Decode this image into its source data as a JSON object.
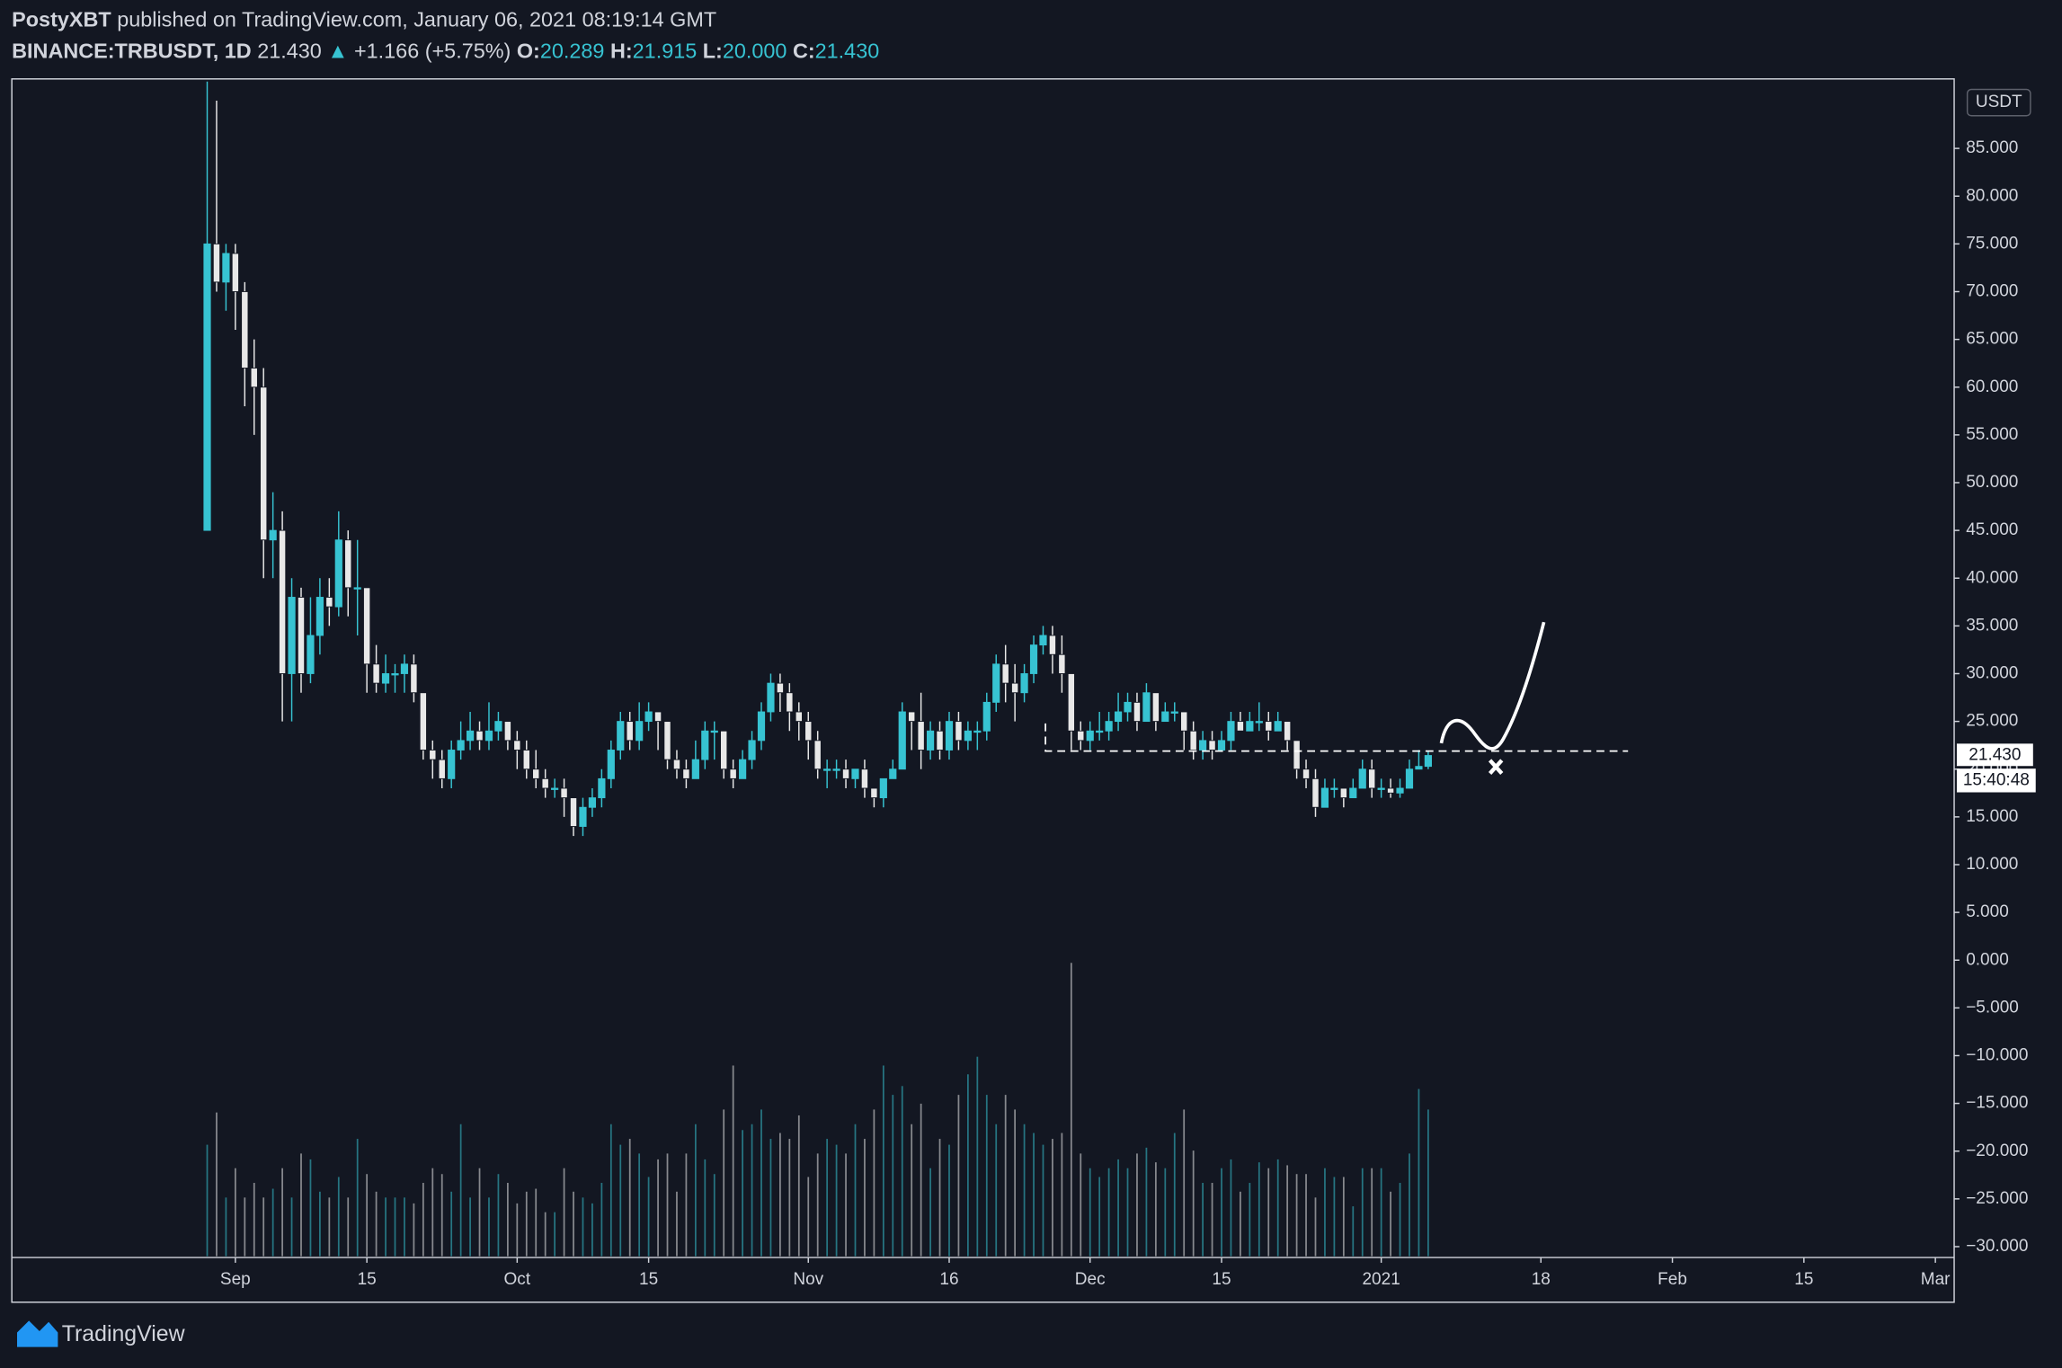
{
  "header": {
    "publisher": "PostyXBT",
    "published": "published on TradingView.com, January 06, 2021 08:19:14 GMT",
    "symbol": "BINANCE:TRBUSDT, 1D",
    "last": "21.430",
    "arrow": "▲",
    "change": "+1.166 (+5.75%)",
    "o_label": "O:",
    "o": "20.289",
    "h_label": "H:",
    "h": "21.915",
    "l_label": "L:",
    "l": "20.000",
    "c_label": "C:",
    "c": "21.430"
  },
  "chart_data": {
    "type": "candlestick",
    "currency": "USDT",
    "price_label": "21.430",
    "countdown": "15:40:48",
    "up_color": "#37c3d2",
    "down_color": "#e8e8e8",
    "x": [
      -3,
      -2,
      -1,
      0,
      1,
      2,
      3,
      4,
      5,
      6,
      7,
      8,
      9,
      10,
      11,
      12,
      13,
      14,
      15,
      16,
      17,
      18,
      19,
      20,
      21,
      22,
      23,
      24,
      25,
      26,
      27,
      28,
      29,
      30,
      31,
      32,
      33,
      34,
      35,
      36,
      37,
      38,
      39,
      40,
      41,
      42,
      43,
      44,
      45,
      46,
      47,
      48,
      49,
      50,
      51,
      52,
      53,
      54,
      55,
      56,
      57,
      58,
      59,
      60,
      61,
      62,
      63,
      64,
      65,
      66,
      67,
      68,
      69,
      70,
      71,
      72,
      73,
      74,
      75,
      76,
      77,
      78,
      79,
      80,
      81,
      82,
      83,
      84,
      85,
      86,
      87,
      88,
      89,
      90,
      91,
      92,
      93,
      94,
      95,
      96,
      97,
      98,
      99,
      100,
      101,
      102,
      103,
      104,
      105,
      106,
      107,
      108,
      109,
      110,
      111,
      112,
      113,
      114,
      115,
      116,
      117,
      118,
      119,
      120,
      121,
      122,
      123,
      124,
      125,
      126,
      127
    ],
    "open": [
      45,
      75,
      71,
      74,
      70,
      62,
      60,
      44,
      45,
      30,
      38,
      30,
      34,
      38,
      37,
      44,
      39,
      39,
      31,
      29,
      30,
      30,
      31,
      28,
      22,
      21,
      19,
      22,
      23,
      24,
      23,
      24,
      25,
      23,
      22,
      20,
      19,
      18,
      18,
      17,
      14,
      16,
      17,
      19,
      22,
      25,
      23,
      25,
      26,
      25,
      21,
      20,
      19,
      21,
      24,
      24,
      20,
      19,
      21,
      23,
      26,
      29,
      28,
      26,
      25,
      23,
      20,
      20,
      20,
      19,
      20,
      18,
      17,
      19,
      20,
      26,
      25,
      22,
      24,
      22,
      25,
      23,
      24,
      24,
      27,
      31,
      29,
      28,
      30,
      33,
      34,
      32,
      30,
      24,
      23,
      24,
      24,
      25,
      26,
      27,
      25,
      28,
      25,
      26,
      26,
      24,
      22,
      23,
      22,
      23,
      25,
      24,
      25,
      25,
      24,
      25,
      23,
      20,
      19,
      16,
      18,
      18,
      17,
      18,
      20,
      18,
      18,
      17.5,
      18,
      20,
      20.289
    ],
    "high": [
      92,
      90,
      75,
      75,
      71,
      65,
      62,
      49,
      47,
      40,
      39,
      38,
      40,
      40,
      47,
      45,
      44,
      39,
      33,
      32,
      31,
      32,
      32,
      28,
      23,
      22,
      23,
      25,
      26,
      25,
      27,
      26,
      25,
      24,
      23,
      22,
      20,
      19,
      19,
      17,
      17,
      18,
      20,
      23,
      26,
      26,
      27,
      27,
      26,
      25,
      22,
      21,
      23,
      25,
      25,
      24,
      21,
      22,
      24,
      27,
      30,
      30,
      29,
      27,
      26,
      24,
      21,
      21,
      21,
      20,
      21,
      18,
      19,
      21,
      27,
      26,
      28,
      25,
      25,
      26,
      26,
      25,
      25,
      28,
      32,
      33,
      31,
      31,
      34,
      35,
      35,
      34,
      30,
      25,
      25,
      26,
      26,
      28,
      28,
      28,
      29,
      28,
      27,
      27,
      26,
      25,
      24,
      24,
      24,
      26,
      26,
      26,
      27,
      26,
      26,
      25,
      23,
      21,
      20,
      19,
      19,
      18,
      19,
      21,
      21,
      19,
      19,
      19,
      21,
      22,
      21.915
    ],
    "low": [
      45,
      70,
      68,
      66,
      58,
      55,
      40,
      40,
      25,
      25,
      28,
      29,
      32,
      35,
      36,
      36,
      34,
      28,
      28,
      28,
      28,
      28,
      27,
      21,
      19,
      18,
      18,
      21,
      22,
      22,
      22,
      23,
      22,
      20,
      19,
      18,
      17,
      17,
      15,
      13,
      13,
      15,
      16,
      18,
      21,
      22,
      22,
      24,
      22,
      20,
      19,
      18,
      19,
      20,
      21,
      19,
      18,
      19,
      20,
      22,
      25,
      26,
      24,
      23,
      21,
      19,
      18,
      19,
      18,
      18,
      17,
      16,
      16,
      19,
      20,
      22,
      20,
      21,
      21,
      21,
      22,
      22,
      22,
      23,
      26,
      27,
      25,
      27,
      29,
      32,
      30,
      28,
      22,
      22,
      22,
      23,
      23,
      24,
      25,
      24,
      25,
      24,
      25,
      25,
      22,
      21,
      21,
      21,
      22,
      22,
      24,
      24,
      24,
      23,
      24,
      22,
      19,
      18,
      15,
      16,
      17,
      16,
      17,
      18,
      17,
      17,
      17,
      17,
      19,
      20,
      20
    ],
    "close": [
      75,
      71,
      74,
      70,
      62,
      60,
      44,
      45,
      30,
      38,
      30,
      34,
      38,
      37,
      44,
      39,
      39,
      31,
      29,
      30,
      30,
      31,
      28,
      22,
      21,
      19,
      22,
      23,
      24,
      23,
      24,
      25,
      23,
      22,
      20,
      19,
      18,
      18,
      17,
      14,
      16,
      17,
      19,
      22,
      25,
      23,
      25,
      26,
      25,
      21,
      20,
      19,
      21,
      24,
      24,
      20,
      19,
      21,
      23,
      26,
      29,
      28,
      26,
      25,
      23,
      20,
      20,
      20,
      19,
      20,
      18,
      17,
      19,
      20,
      26,
      25,
      22,
      24,
      22,
      25,
      23,
      24,
      24,
      27,
      31,
      29,
      28,
      30,
      33,
      34,
      32,
      30,
      24,
      23,
      24,
      24,
      25,
      26,
      27,
      25,
      28,
      25,
      26,
      26,
      24,
      22,
      23,
      22,
      23,
      25,
      24,
      25,
      25,
      24,
      25,
      23,
      20,
      19,
      16,
      18,
      18,
      17,
      18,
      20,
      18,
      18,
      17.5,
      18,
      20,
      20.289,
      21.43
    ],
    "volume": [
      38,
      49,
      20,
      30,
      20,
      25,
      20,
      23,
      30,
      20,
      35,
      33,
      22,
      20,
      27,
      20,
      40,
      28,
      22,
      20,
      20,
      20,
      18,
      25,
      30,
      28,
      22,
      45,
      20,
      30,
      20,
      28,
      25,
      18,
      22,
      23,
      15,
      15,
      30,
      22,
      20,
      18,
      25,
      45,
      38,
      40,
      35,
      27,
      33,
      35,
      22,
      35,
      45,
      33,
      28,
      50,
      65,
      43,
      45,
      50,
      40,
      42,
      40,
      48,
      27,
      35,
      40,
      38,
      35,
      45,
      40,
      50,
      65,
      55,
      58,
      45,
      52,
      30,
      40,
      38,
      55,
      62,
      68,
      55,
      45,
      55,
      50,
      45,
      42,
      38,
      40,
      42,
      100,
      35,
      30,
      27,
      30,
      33,
      30,
      35,
      37,
      32,
      30,
      42,
      50,
      36,
      25,
      25,
      30,
      33,
      22,
      25,
      32,
      30,
      33,
      31,
      28,
      28,
      20,
      30,
      27,
      27,
      17,
      30,
      30,
      30,
      22,
      25,
      35,
      57,
      50
    ],
    "xlim": [
      -23.8,
      183
    ],
    "xticks": [
      {
        "value": 0,
        "label": "Sep"
      },
      {
        "value": 14,
        "label": "15"
      },
      {
        "value": 30,
        "label": "Oct"
      },
      {
        "value": 44,
        "label": "15"
      },
      {
        "value": 61,
        "label": "Nov"
      },
      {
        "value": 76,
        "label": "16"
      },
      {
        "value": 91,
        "label": "Dec"
      },
      {
        "value": 105,
        "label": "15"
      },
      {
        "value": 122,
        "label": "2021"
      },
      {
        "value": 139,
        "label": "18"
      },
      {
        "value": 153,
        "label": "Feb"
      },
      {
        "value": 167,
        "label": "15"
      },
      {
        "value": 181,
        "label": "Mar"
      }
    ],
    "ylim": [
      -31,
      92
    ],
    "yticks": [
      {
        "value": 85,
        "label": "85.000"
      },
      {
        "value": 80,
        "label": "80.000"
      },
      {
        "value": 75,
        "label": "75.000"
      },
      {
        "value": 70,
        "label": "70.000"
      },
      {
        "value": 65,
        "label": "65.000"
      },
      {
        "value": 60,
        "label": "60.000"
      },
      {
        "value": 55,
        "label": "55.000"
      },
      {
        "value": 50,
        "label": "50.000"
      },
      {
        "value": 45,
        "label": "45.000"
      },
      {
        "value": 40,
        "label": "40.000"
      },
      {
        "value": 35,
        "label": "35.000"
      },
      {
        "value": 30,
        "label": "30.000"
      },
      {
        "value": 25,
        "label": "25.000"
      },
      {
        "value": 20,
        "label": "20.000"
      },
      {
        "value": 15,
        "label": "15.000"
      },
      {
        "value": 10,
        "label": "10.000"
      },
      {
        "value": 5,
        "label": "5.000"
      },
      {
        "value": 0,
        "label": "0.000"
      },
      {
        "value": -5,
        "label": "−5.000"
      },
      {
        "value": -10,
        "label": "−10.000"
      },
      {
        "value": -15,
        "label": "−15.000"
      },
      {
        "value": -20,
        "label": "−20.000"
      },
      {
        "value": -25,
        "label": "−25.000"
      },
      {
        "value": -30,
        "label": "−30.000"
      }
    ]
  },
  "footer": {
    "brand": "TradingView"
  }
}
